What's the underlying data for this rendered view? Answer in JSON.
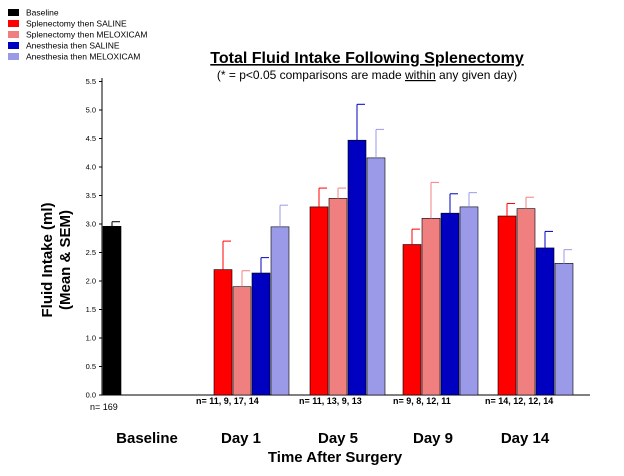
{
  "colors": {
    "Baseline": "#000000",
    "Splenectomy then SALINE": "#ff0000",
    "Splenectomy then MELOXICAM": "#f08080",
    "Anesthesia then SALINE": "#0000c0",
    "Anesthesia then MELOXICAM": "#9a9ae8"
  },
  "legend": {
    "items": [
      {
        "label": "Baseline",
        "color_key": "Baseline"
      },
      {
        "label": "Splenectomy then SALINE",
        "color_key": "Splenectomy then SALINE"
      },
      {
        "label": "Splenectomy then MELOXICAM",
        "color_key": "Splenectomy then MELOXICAM"
      },
      {
        "label": "Anesthesia then SALINE",
        "color_key": "Anesthesia then SALINE"
      },
      {
        "label": "Anesthesia then MELOXICAM",
        "color_key": "Anesthesia then MELOXICAM"
      }
    ]
  },
  "chart_data": {
    "type": "bar",
    "title": "Total Fluid Intake Following Splenectomy",
    "subtitle_prefix": "(* = p<0.05 comparisons are made ",
    "subtitle_underlined": "within",
    "subtitle_suffix": " any given day)",
    "ylabel_line1": "Fluid Intake (ml)",
    "ylabel_line2": "(Mean & SEM)",
    "xlabel": "Time After Surgery",
    "ylim": [
      0,
      5.5
    ],
    "yticks": [
      "0.0",
      "0.5",
      "1.0",
      "1.5",
      "2.0",
      "2.5",
      "3.0",
      "3.5",
      "4.0",
      "4.5",
      "5.0",
      "5.5"
    ],
    "grid": false,
    "legend_position": "top-left",
    "categories": [
      "Baseline",
      "Day 1",
      "Day 5",
      "Day 9",
      "Day 14"
    ],
    "series": [
      {
        "name": "Baseline",
        "values": [
          2.96,
          null,
          null,
          null,
          null
        ],
        "errors": [
          0.08,
          null,
          null,
          null,
          null
        ]
      },
      {
        "name": "Splenectomy then SALINE",
        "values": [
          null,
          2.2,
          3.3,
          2.64,
          3.14
        ],
        "errors": [
          null,
          0.5,
          0.33,
          0.27,
          0.22
        ]
      },
      {
        "name": "Splenectomy then MELOXICAM",
        "values": [
          null,
          1.9,
          3.45,
          3.1,
          3.27
        ],
        "errors": [
          null,
          0.28,
          0.18,
          0.63,
          0.2
        ]
      },
      {
        "name": "Anesthesia then SALINE",
        "values": [
          null,
          2.14,
          4.47,
          3.19,
          2.58
        ],
        "errors": [
          null,
          0.27,
          0.63,
          0.34,
          0.29
        ]
      },
      {
        "name": "Anesthesia then MELOXICAM",
        "values": [
          null,
          2.95,
          4.16,
          3.3,
          2.31
        ],
        "errors": [
          null,
          0.38,
          0.5,
          0.25,
          0.24
        ]
      }
    ],
    "n_labels": [
      "n= 169",
      "n= 11,  9,    17,  14",
      "n= 11,  13,   9,   13",
      "n= 9,     8,    12,   11",
      "n= 14,  12,   12,   14"
    ]
  }
}
